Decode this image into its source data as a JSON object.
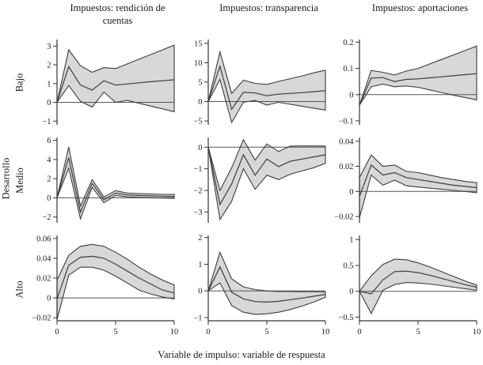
{
  "figure": {
    "column_titles": [
      "Impuestos: rendición de cuentas",
      "Impuestos: transparencia",
      "Impuestos: aportaciones"
    ],
    "row_group_label": "Desarrollo",
    "row_labels": [
      "Bajo",
      "Medio",
      "Alto"
    ],
    "caption": "Variable de impulso: variable de respuesta"
  },
  "style": {
    "band_fill": "#d8d8d8",
    "line_color": "#3c3c3c",
    "axis_color": "#333333",
    "zero_line_color": "#555555",
    "text_color": "#1a1a1a"
  },
  "chart_data": [
    {
      "type": "area",
      "row": "Bajo",
      "column": "Impuestos: rendición de cuentas",
      "x": [
        0,
        1,
        2,
        3,
        4,
        5,
        6,
        7,
        8,
        9,
        10
      ],
      "series": [
        {
          "name": "upper",
          "values": [
            0,
            2.8,
            1.95,
            1.6,
            1.85,
            1.8,
            2.05,
            2.3,
            2.55,
            2.8,
            3.05
          ]
        },
        {
          "name": "median",
          "values": [
            0,
            1.9,
            0.92,
            0.65,
            1.15,
            0.92,
            0.98,
            1.04,
            1.1,
            1.15,
            1.2
          ]
        },
        {
          "name": "lower",
          "values": [
            0,
            0.9,
            0.05,
            -0.25,
            0.55,
            0,
            0.1,
            -0.05,
            -0.2,
            -0.35,
            -0.5
          ]
        }
      ],
      "ylim": [
        -1.2,
        3.35
      ],
      "yticks": [
        -1,
        0,
        1,
        2,
        3
      ],
      "xticks": [
        0,
        5,
        10
      ],
      "zero_line": true,
      "show_x_axis": false
    },
    {
      "type": "area",
      "row": "Bajo",
      "column": "Impuestos: transparencia",
      "x": [
        0,
        1,
        2,
        3,
        4,
        5,
        6,
        7,
        8,
        9,
        10
      ],
      "series": [
        {
          "name": "upper",
          "values": [
            0,
            12.8,
            2.1,
            5.5,
            4.7,
            4.4,
            5.2,
            5.9,
            6.6,
            7.4,
            8.1
          ]
        },
        {
          "name": "median",
          "values": [
            0,
            9.1,
            -2.0,
            2.4,
            2.2,
            1.5,
            1.9,
            2.1,
            2.3,
            2.55,
            2.8
          ]
        },
        {
          "name": "lower",
          "values": [
            0,
            5.7,
            -5.4,
            -0.2,
            0.3,
            -0.9,
            -0.2,
            -0.7,
            -1.2,
            -1.7,
            -2.2
          ]
        }
      ],
      "ylim": [
        -6,
        16
      ],
      "yticks": [
        -5,
        0,
        5,
        10,
        15
      ],
      "xticks": [
        0,
        5,
        10
      ],
      "zero_line": true,
      "show_x_axis": false
    },
    {
      "type": "area",
      "row": "Bajo",
      "column": "Impuestos: aportaciones",
      "x": [
        0,
        1,
        2,
        3,
        4,
        5,
        6,
        7,
        8,
        9,
        10
      ],
      "series": [
        {
          "name": "upper",
          "values": [
            -0.04,
            0.092,
            0.085,
            0.075,
            0.09,
            0.1,
            0.117,
            0.134,
            0.151,
            0.168,
            0.185
          ]
        },
        {
          "name": "median",
          "values": [
            -0.04,
            0.063,
            0.065,
            0.05,
            0.058,
            0.06,
            0.064,
            0.068,
            0.072,
            0.076,
            0.08
          ]
        },
        {
          "name": "lower",
          "values": [
            -0.04,
            0.03,
            0.04,
            0.03,
            0.033,
            0.028,
            0.018,
            0.008,
            -0.002,
            -0.011,
            -0.02
          ]
        }
      ],
      "ylim": [
        -0.115,
        0.21
      ],
      "yticks": [
        -0.1,
        0,
        0.1,
        0.2
      ],
      "xticks": [
        0,
        5,
        10
      ],
      "zero_line": true,
      "show_x_axis": false
    },
    {
      "type": "area",
      "row": "Medio",
      "column": "Impuestos: rendición de cuentas",
      "x": [
        0,
        1,
        2,
        3,
        4,
        5,
        6,
        7,
        8,
        9,
        10
      ],
      "series": [
        {
          "name": "upper",
          "values": [
            0,
            5.3,
            -0.85,
            1.9,
            0.1,
            0.75,
            0.5,
            0.45,
            0.4,
            0.37,
            0.35
          ]
        },
        {
          "name": "median",
          "values": [
            0,
            4.2,
            -1.5,
            1.5,
            -0.2,
            0.5,
            0.3,
            0.25,
            0.2,
            0.17,
            0.15
          ]
        },
        {
          "name": "lower",
          "values": [
            0,
            3.1,
            -2.2,
            1.1,
            -0.5,
            0.25,
            0.1,
            0.05,
            0,
            -0.02,
            -0.05
          ]
        }
      ],
      "ylim": [
        -2.6,
        6.3
      ],
      "yticks": [
        -2,
        0,
        2,
        4,
        6
      ],
      "xticks": [
        0,
        5,
        10
      ],
      "zero_line": true,
      "show_x_axis": false
    },
    {
      "type": "area",
      "row": "Medio",
      "column": "Impuestos: transparencia",
      "x": [
        0,
        1,
        2,
        3,
        4,
        5,
        6,
        7,
        8,
        9,
        10
      ],
      "series": [
        {
          "name": "upper",
          "values": [
            0,
            -2.0,
            -0.95,
            0.35,
            -0.6,
            0.15,
            -0.2,
            0.05,
            0.06,
            0.06,
            0.05
          ]
        },
        {
          "name": "median",
          "values": [
            0,
            -2.65,
            -1.7,
            -0.35,
            -1.3,
            -0.55,
            -0.9,
            -0.65,
            -0.55,
            -0.45,
            -0.35
          ]
        },
        {
          "name": "lower",
          "values": [
            0,
            -3.35,
            -2.5,
            -1.0,
            -1.95,
            -1.3,
            -1.5,
            -1.25,
            -1.1,
            -0.95,
            -0.75
          ]
        }
      ],
      "ylim": [
        -3.5,
        0.45
      ],
      "yticks": [
        -3,
        -2,
        -1,
        0
      ],
      "xticks": [
        0,
        5,
        10
      ],
      "zero_line": true,
      "show_x_axis": false
    },
    {
      "type": "area",
      "row": "Medio",
      "column": "Impuestos: aportaciones",
      "x": [
        0,
        1,
        2,
        3,
        4,
        5,
        6,
        7,
        8,
        9,
        10
      ],
      "series": [
        {
          "name": "upper",
          "values": [
            0.011,
            0.029,
            0.02,
            0.021,
            0.016,
            0.015,
            0.013,
            0.011,
            0.0095,
            0.008,
            0.007
          ]
        },
        {
          "name": "median",
          "values": [
            -0.004,
            0.021,
            0.013,
            0.015,
            0.011,
            0.0095,
            0.008,
            0.0065,
            0.005,
            0.004,
            0.003
          ]
        },
        {
          "name": "lower",
          "values": [
            -0.021,
            0.013,
            0.005,
            0.009,
            0.0045,
            0.0035,
            0.0026,
            0.0017,
            0.0008,
            0,
            -0.001
          ]
        }
      ],
      "ylim": [
        -0.025,
        0.043
      ],
      "yticks": [
        -0.02,
        0,
        0.02,
        0.04
      ],
      "xticks": [
        0,
        5,
        10
      ],
      "zero_line": true,
      "show_x_axis": false
    },
    {
      "type": "area",
      "row": "Alto",
      "column": "Impuestos: rendición de cuentas",
      "x": [
        0,
        1,
        2,
        3,
        4,
        5,
        6,
        7,
        8,
        9,
        10
      ],
      "series": [
        {
          "name": "upper",
          "values": [
            0.018,
            0.043,
            0.052,
            0.054,
            0.052,
            0.046,
            0.039,
            0.031,
            0.024,
            0.018,
            0.013
          ]
        },
        {
          "name": "median",
          "values": [
            -0.001,
            0.033,
            0.041,
            0.042,
            0.04,
            0.034,
            0.027,
            0.02,
            0.014,
            0.008,
            0.005
          ]
        },
        {
          "name": "lower",
          "values": [
            -0.022,
            0.023,
            0.031,
            0.031,
            0.028,
            0.022,
            0.015,
            0.008,
            0.004,
            0.001,
            -0.001
          ]
        }
      ],
      "ylim": [
        -0.023,
        0.063
      ],
      "yticks": [
        -0.02,
        0,
        0.02,
        0.04,
        0.06
      ],
      "xticks": [
        0,
        5,
        10
      ],
      "zero_line": true,
      "show_x_axis": true
    },
    {
      "type": "area",
      "row": "Alto",
      "column": "Impuestos: transparencia",
      "x": [
        0,
        1,
        2,
        3,
        4,
        5,
        6,
        7,
        8,
        9,
        10
      ],
      "series": [
        {
          "name": "upper",
          "values": [
            0,
            1.45,
            0.45,
            0.15,
            0.05,
            0,
            -0.02,
            -0.02,
            -0.03,
            -0.03,
            -0.04
          ]
        },
        {
          "name": "median",
          "values": [
            0,
            0.9,
            -0.05,
            -0.3,
            -0.4,
            -0.42,
            -0.39,
            -0.33,
            -0.27,
            -0.2,
            -0.13
          ]
        },
        {
          "name": "lower",
          "values": [
            0,
            0.3,
            -0.55,
            -0.8,
            -0.88,
            -0.86,
            -0.8,
            -0.7,
            -0.57,
            -0.42,
            -0.24
          ]
        }
      ],
      "ylim": [
        -1.12,
        2.08
      ],
      "yticks": [
        -1,
        0,
        1,
        2
      ],
      "xticks": [
        0,
        5,
        10
      ],
      "zero_line": true,
      "show_x_axis": true
    },
    {
      "type": "area",
      "row": "Alto",
      "column": "Impuestos: aportaciones",
      "x": [
        0,
        1,
        2,
        3,
        4,
        5,
        6,
        7,
        8,
        9,
        10
      ],
      "series": [
        {
          "name": "upper",
          "values": [
            0,
            0.3,
            0.52,
            0.62,
            0.61,
            0.55,
            0.47,
            0.38,
            0.29,
            0.2,
            0.12
          ]
        },
        {
          "name": "median",
          "values": [
            0,
            -0.05,
            0.22,
            0.38,
            0.39,
            0.36,
            0.31,
            0.25,
            0.19,
            0.13,
            0.08
          ]
        },
        {
          "name": "lower",
          "values": [
            0,
            -0.43,
            0.02,
            0.13,
            0.17,
            0.16,
            0.14,
            0.11,
            0.08,
            0.05,
            0.02
          ]
        }
      ],
      "ylim": [
        -0.57,
        1.08
      ],
      "yticks": [
        -0.5,
        0,
        0.5,
        1
      ],
      "xticks": [
        0,
        5,
        10
      ],
      "zero_line": true,
      "show_x_axis": true
    }
  ]
}
